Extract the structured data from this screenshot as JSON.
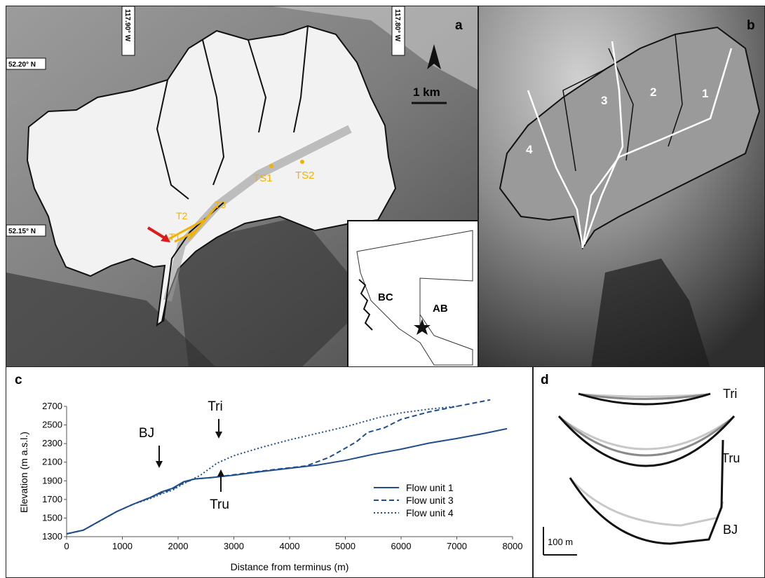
{
  "panel_a": {
    "label": "a",
    "lon_left": "117.90° W",
    "lon_right": "117.80° W",
    "lat_top": "52.20° N",
    "lat_bottom": "52.15° N",
    "scale": "1 km",
    "transects": [
      "T1",
      "T2",
      "T3"
    ],
    "stakes": [
      "TS1",
      "TS2"
    ],
    "inset": {
      "left": "BC",
      "right": "AB"
    }
  },
  "panel_b": {
    "label": "b",
    "flow_units": [
      "1",
      "2",
      "3",
      "4"
    ]
  },
  "panel_c": {
    "label": "c",
    "annotations": {
      "bj": "BJ",
      "tri": "Tri",
      "tru": "Tru"
    }
  },
  "panel_d": {
    "label": "d",
    "profiles": [
      "Tri",
      "Tru",
      "BJ"
    ],
    "scale": "100 m"
  },
  "colors": {
    "series": "#1f4e8c",
    "transect": "#f2b300",
    "arrow": "#e0191b"
  },
  "chart_data": {
    "type": "line",
    "xlabel": "Distance from terminus (m)",
    "ylabel": "Elevation (m a.s.l.)",
    "xlim": [
      0,
      8000
    ],
    "ylim": [
      1300,
      2700
    ],
    "xticks": [
      0,
      1000,
      2000,
      3000,
      4000,
      5000,
      6000,
      7000,
      8000
    ],
    "yticks": [
      1300,
      1500,
      1700,
      1900,
      2100,
      2300,
      2500,
      2700
    ],
    "legend_position": "bottom-right",
    "series": [
      {
        "name": "Flow unit 1",
        "style": "solid",
        "x": [
          0,
          300,
          600,
          900,
          1200,
          1500,
          1700,
          1900,
          2100,
          2300,
          2600,
          3000,
          3500,
          4000,
          4500,
          5000,
          5500,
          6000,
          6500,
          7000,
          7500,
          7900
        ],
        "y": [
          1330,
          1370,
          1470,
          1570,
          1650,
          1720,
          1780,
          1820,
          1890,
          1920,
          1935,
          1960,
          2000,
          2035,
          2070,
          2120,
          2185,
          2240,
          2305,
          2355,
          2410,
          2460
        ]
      },
      {
        "name": "Flow unit 3",
        "style": "dashed",
        "x": [
          0,
          300,
          600,
          900,
          1200,
          1500,
          1700,
          1900,
          2100,
          2300,
          2600,
          3000,
          3500,
          4000,
          4300,
          4700,
          5000,
          5200,
          5400,
          5700,
          6000,
          6500,
          7000,
          7600
        ],
        "y": [
          1330,
          1370,
          1470,
          1570,
          1650,
          1720,
          1770,
          1810,
          1880,
          1920,
          1935,
          1965,
          2005,
          2040,
          2060,
          2150,
          2250,
          2320,
          2420,
          2470,
          2560,
          2640,
          2700,
          2770
        ]
      },
      {
        "name": "Flow unit 4",
        "style": "dotted",
        "x": [
          0,
          300,
          600,
          900,
          1200,
          1500,
          1700,
          1900,
          2100,
          2400,
          2700,
          3000,
          3500,
          4000,
          4500,
          5000,
          5300,
          5600,
          6000,
          6500,
          7000
        ],
        "y": [
          1330,
          1370,
          1470,
          1570,
          1650,
          1710,
          1760,
          1800,
          1870,
          1960,
          2090,
          2170,
          2260,
          2340,
          2410,
          2480,
          2530,
          2580,
          2630,
          2670,
          2700
        ]
      }
    ]
  }
}
